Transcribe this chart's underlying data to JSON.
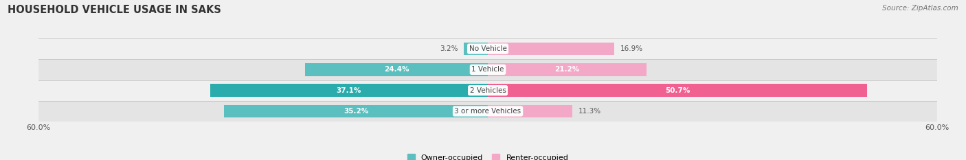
{
  "title": "HOUSEHOLD VEHICLE USAGE IN SAKS",
  "source": "Source: ZipAtlas.com",
  "categories": [
    "No Vehicle",
    "1 Vehicle",
    "2 Vehicles",
    "3 or more Vehicles"
  ],
  "owner_values": [
    3.2,
    24.4,
    37.1,
    35.2
  ],
  "renter_values": [
    16.9,
    21.2,
    50.7,
    11.3
  ],
  "owner_color_normal": "#5BBFBF",
  "owner_color_highlight": "#2AACAC",
  "renter_color_normal": "#F4A8C8",
  "renter_color_highlight": "#F06090",
  "owner_label": "Owner-occupied",
  "renter_label": "Renter-occupied",
  "x_max": 60.0,
  "x_min": -60.0,
  "bg_light": "#f0f0f0",
  "bg_dark": "#e4e4e4",
  "title_fontsize": 10.5,
  "value_fontsize": 7.5,
  "source_fontsize": 7.5,
  "legend_fontsize": 8,
  "highlight_rows": [
    2
  ],
  "tick_label_left": "60.0%",
  "tick_label_right": "60.0%"
}
